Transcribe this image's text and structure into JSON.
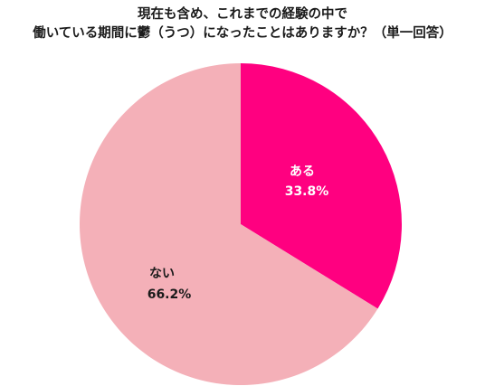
{
  "chart_data": {
    "type": "pie",
    "title_lines": [
      "現在も含め、これまでの経験の中で",
      "働いている期間に鬱（うつ）になったことはありますか？（単一回答）"
    ],
    "slices": [
      {
        "label": "ある",
        "value": 33.8,
        "value_text": "33.8%",
        "color": "#ff0080",
        "label_color": "#ffffff"
      },
      {
        "label": "ない",
        "value": 66.2,
        "value_text": "66.2%",
        "color": "#f4b0b8",
        "label_color": "#1a1a1a"
      }
    ],
    "start": "12 o'clock",
    "direction": "clockwise",
    "legend": "none",
    "data_labels": "inside"
  }
}
